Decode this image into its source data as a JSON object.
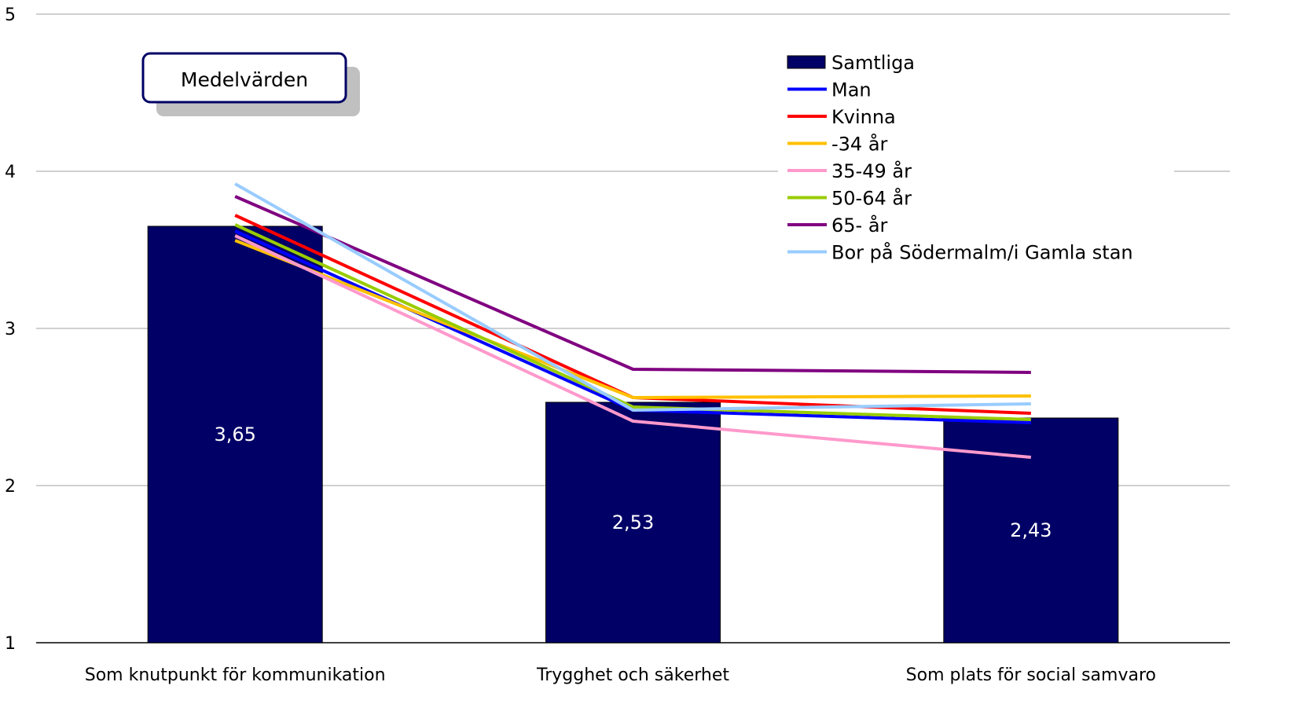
{
  "chart_data": {
    "type": "bar",
    "title": "",
    "annotation": "Medelvärden",
    "categories": [
      "Som knutpunkt för kommunikation",
      "Trygghet och säkerhet",
      "Som plats för social samvaro"
    ],
    "ylim": [
      1,
      5
    ],
    "yticks": [
      1,
      2,
      3,
      4,
      5
    ],
    "grid": true,
    "legend_position": "top-right",
    "bar_series": {
      "name": "Samtliga",
      "values": [
        3.65,
        2.53,
        2.43
      ],
      "labels": [
        "3,65",
        "2,53",
        "2,43"
      ],
      "color": "#000066"
    },
    "line_series": [
      {
        "name": "Man",
        "values": [
          3.62,
          2.48,
          2.4
        ],
        "color": "#0000ff"
      },
      {
        "name": "Kvinna",
        "values": [
          3.72,
          2.56,
          2.46
        ],
        "color": "#ff0000"
      },
      {
        "name": "-34 år",
        "values": [
          3.56,
          2.56,
          2.57
        ],
        "color": "#ffc000"
      },
      {
        "name": "35-49 år",
        "values": [
          3.59,
          2.41,
          2.18
        ],
        "color": "#ff99cc"
      },
      {
        "name": "50-64 år",
        "values": [
          3.66,
          2.5,
          2.42
        ],
        "color": "#99cc00"
      },
      {
        "name": "65- år",
        "values": [
          3.84,
          2.74,
          2.72
        ],
        "color": "#800080"
      },
      {
        "name": "Bor på Södermalm/i Gamla stan",
        "values": [
          3.92,
          2.48,
          2.52
        ],
        "color": "#99ccff"
      }
    ]
  }
}
